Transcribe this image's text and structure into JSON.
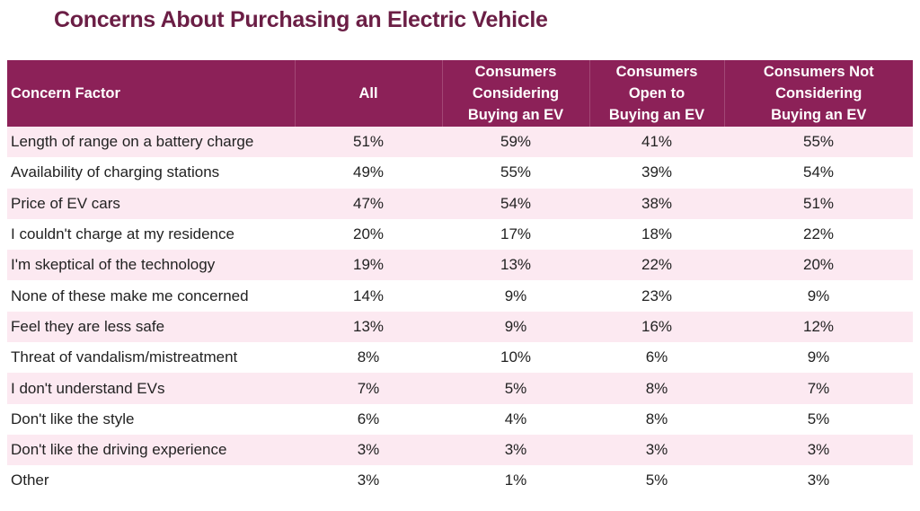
{
  "title": "Concerns About Purchasing an Electric Vehicle",
  "colors": {
    "title": "#6b1e45",
    "header_bg": "#8c2158",
    "row_alt_bg": "#fce9f1"
  },
  "chart_data": {
    "type": "table",
    "title": "Concerns About Purchasing an Electric Vehicle",
    "columns": [
      "Concern Factor",
      "All",
      "Consumers\nConsidering\nBuying an EV",
      "Consumers\nOpen to\nBuying an EV",
      "Consumers Not\nConsidering\nBuying  an EV"
    ],
    "rows": [
      [
        "Length of range on a battery charge",
        "51%",
        "59%",
        "41%",
        "55%"
      ],
      [
        "Availability of charging stations",
        "49%",
        "55%",
        "39%",
        "54%"
      ],
      [
        "Price of EV cars",
        "47%",
        "54%",
        "38%",
        "51%"
      ],
      [
        "I couldn't charge at my residence",
        "20%",
        "17%",
        "18%",
        "22%"
      ],
      [
        "I'm skeptical of the technology",
        "19%",
        "13%",
        "22%",
        "20%"
      ],
      [
        "None of these make me concerned",
        "14%",
        "9%",
        "23%",
        "9%"
      ],
      [
        "Feel they are less safe",
        "13%",
        "9%",
        "16%",
        "12%"
      ],
      [
        "Threat of vandalism/mistreatment",
        "8%",
        "10%",
        "6%",
        "9%"
      ],
      [
        "I don't understand EVs",
        "7%",
        "5%",
        "8%",
        "7%"
      ],
      [
        "Don't like the style",
        "6%",
        "4%",
        "8%",
        "5%"
      ],
      [
        "Don't like the driving experience",
        "3%",
        "3%",
        "3%",
        "3%"
      ],
      [
        "Other",
        "3%",
        "1%",
        "5%",
        "3%"
      ]
    ]
  }
}
